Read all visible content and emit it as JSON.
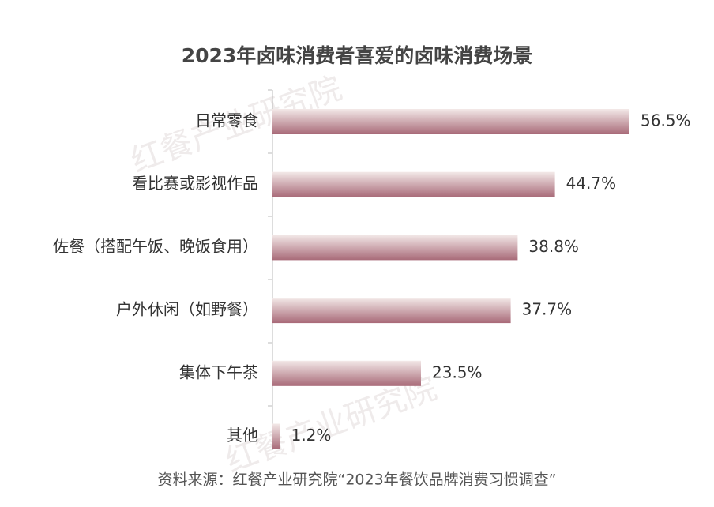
{
  "chart_data": {
    "type": "bar",
    "orientation": "horizontal",
    "title": "2023年卤味消费者喜爱的卤味消费场景",
    "categories": [
      "日常零食",
      "看比赛或影视作品",
      "佐餐（搭配午饭、晚饭食用）",
      "户外休闲（如野餐）",
      "集体下午茶",
      "其他"
    ],
    "values": [
      56.5,
      44.7,
      38.8,
      37.7,
      23.5,
      1.2
    ],
    "value_labels": [
      "56.5%",
      "44.7%",
      "38.8%",
      "37.7%",
      "23.5%",
      "1.2%"
    ],
    "color": "#a86a78",
    "source": "资料来源：红餐产业研究院“2023年餐饮品牌消费习惯调查”",
    "watermark": "红餐产业研究院"
  }
}
